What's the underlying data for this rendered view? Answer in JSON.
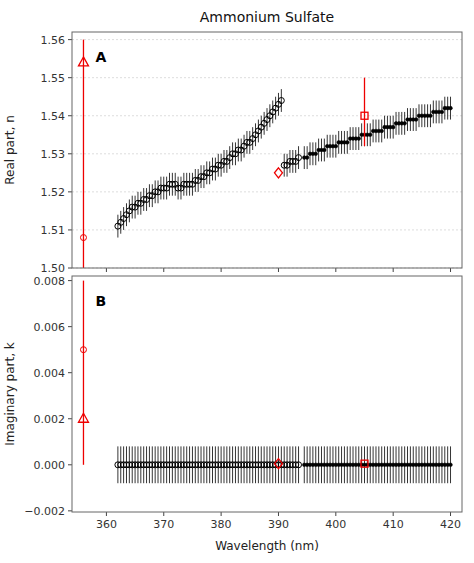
{
  "chart_data": [
    {
      "type": "scatter",
      "title": "Ammonium Sulfate",
      "ylabel": "Real part, n",
      "annotations": [
        "A"
      ],
      "xlim": [
        354,
        422
      ],
      "xticks": [
        360,
        370,
        380,
        390,
        400,
        410,
        420
      ],
      "ylim": [
        1.5,
        1.562
      ],
      "yticks": [
        {
          "value": 1.5,
          "label": "1.50"
        },
        {
          "value": 1.51,
          "label": "1.51"
        },
        {
          "value": 1.52,
          "label": "1.52"
        },
        {
          "value": 1.53,
          "label": "1.53"
        },
        {
          "value": 1.54,
          "label": "1.54"
        },
        {
          "value": 1.55,
          "label": "1.55"
        },
        {
          "value": 1.56,
          "label": "1.56"
        }
      ],
      "grid": "y",
      "tick_labels": "y",
      "series": [
        {
          "marker": "open-circle",
          "color": "#000000",
          "error": 0.003,
          "x": [
            362,
            362.5,
            363,
            363.5,
            364,
            364.5,
            365,
            365.5,
            366,
            366.5,
            367,
            367.5,
            368,
            368.5,
            369,
            369.5,
            370,
            370.5,
            371,
            371.5,
            372,
            372.5,
            373,
            373.5,
            374,
            374.5,
            375,
            375.5,
            376,
            376.5,
            377,
            377.5,
            378,
            378.5,
            379,
            379.5,
            380,
            380.5,
            381,
            381.5,
            382,
            382.5,
            383,
            383.5,
            384,
            384.5,
            385,
            385.5,
            386,
            386.5,
            387,
            387.5,
            388,
            388.5,
            389,
            389.5,
            390,
            390.5,
            391,
            391.5,
            392,
            392.5,
            393,
            393.5
          ],
          "values": [
            1.511,
            1.512,
            1.513,
            1.514,
            1.515,
            1.516,
            1.516,
            1.517,
            1.517,
            1.518,
            1.518,
            1.519,
            1.519,
            1.52,
            1.52,
            1.521,
            1.521,
            1.521,
            1.522,
            1.522,
            1.522,
            1.521,
            1.521,
            1.522,
            1.522,
            1.522,
            1.522,
            1.523,
            1.523,
            1.524,
            1.524,
            1.525,
            1.525,
            1.526,
            1.526,
            1.527,
            1.527,
            1.528,
            1.528,
            1.529,
            1.53,
            1.53,
            1.531,
            1.531,
            1.532,
            1.533,
            1.533,
            1.534,
            1.535,
            1.536,
            1.537,
            1.538,
            1.539,
            1.54,
            1.541,
            1.542,
            1.543,
            1.544,
            1.527,
            1.527,
            1.528,
            1.528,
            1.528,
            1.529
          ]
        },
        {
          "marker": "dot",
          "color": "#000000",
          "error": 0.003,
          "x": [
            394.5,
            395,
            395.5,
            396,
            396.5,
            397,
            397.5,
            398,
            398.5,
            399,
            399.5,
            400,
            400.5,
            401,
            401.5,
            402,
            402.5,
            403,
            403.5,
            404,
            404.5,
            405,
            405.5,
            406,
            406.5,
            407,
            407.5,
            408,
            408.5,
            409,
            409.5,
            410,
            410.5,
            411,
            411.5,
            412,
            412.5,
            413,
            413.5,
            414,
            414.5,
            415,
            415.5,
            416,
            416.5,
            417,
            417.5,
            418,
            418.5,
            419,
            419.5,
            420
          ],
          "values": [
            1.529,
            1.529,
            1.53,
            1.53,
            1.53,
            1.531,
            1.531,
            1.531,
            1.532,
            1.532,
            1.532,
            1.532,
            1.533,
            1.533,
            1.533,
            1.533,
            1.534,
            1.534,
            1.534,
            1.534,
            1.535,
            1.535,
            1.535,
            1.535,
            1.536,
            1.536,
            1.536,
            1.536,
            1.537,
            1.537,
            1.537,
            1.537,
            1.538,
            1.538,
            1.538,
            1.538,
            1.539,
            1.539,
            1.539,
            1.539,
            1.54,
            1.54,
            1.54,
            1.54,
            1.54,
            1.541,
            1.541,
            1.541,
            1.541,
            1.542,
            1.542,
            1.542
          ]
        },
        {
          "type": "range",
          "color": "#EE0000",
          "x": [
            356
          ],
          "low": [
            1.5
          ],
          "high": [
            1.56
          ]
        },
        {
          "marker": "open-triangle",
          "color": "#EE0000",
          "x": [
            356
          ],
          "values": [
            1.554
          ]
        },
        {
          "marker": "open-circle",
          "color": "#EE0000",
          "x": [
            356
          ],
          "values": [
            1.508
          ]
        },
        {
          "marker": "open-diamond",
          "color": "#EE0000",
          "x": [
            390
          ],
          "values": [
            1.525
          ]
        },
        {
          "marker": "open-square",
          "color": "#EE0000",
          "x": [
            405
          ],
          "values": [
            1.54
          ],
          "error_low": 0.008,
          "error_high": 0.01
        }
      ]
    },
    {
      "type": "scatter",
      "xlabel": "Wavelength (nm)",
      "ylabel": "Imaginary part, k",
      "annotations": [
        "B"
      ],
      "xlim": [
        354,
        422
      ],
      "xticks": [
        360,
        370,
        380,
        390,
        400,
        410,
        420
      ],
      "ylim": [
        -0.00205,
        0.0082
      ],
      "yticks": [
        {
          "value": -0.002,
          "label": "−0.002"
        },
        {
          "value": 0.0,
          "label": "0.000"
        },
        {
          "value": 0.002,
          "label": "0.002"
        },
        {
          "value": 0.004,
          "label": "0.004"
        },
        {
          "value": 0.006,
          "label": "0.006"
        },
        {
          "value": 0.008,
          "label": "0.008"
        }
      ],
      "grid": false,
      "series": [
        {
          "marker": "open-circle",
          "color": "#000000",
          "error": 0.0008,
          "x": [
            362,
            362.5,
            363,
            363.5,
            364,
            364.5,
            365,
            365.5,
            366,
            366.5,
            367,
            367.5,
            368,
            368.5,
            369,
            369.5,
            370,
            370.5,
            371,
            371.5,
            372,
            372.5,
            373,
            373.5,
            374,
            374.5,
            375,
            375.5,
            376,
            376.5,
            377,
            377.5,
            378,
            378.5,
            379,
            379.5,
            380,
            380.5,
            381,
            381.5,
            382,
            382.5,
            383,
            383.5,
            384,
            384.5,
            385,
            385.5,
            386,
            386.5,
            387,
            387.5,
            388,
            388.5,
            389,
            389.5,
            390,
            390.5,
            391,
            391.5,
            392,
            392.5,
            393,
            393.5
          ],
          "values": [
            0.0,
            0.0,
            0.0,
            0.0,
            0.0,
            0.0,
            0.0,
            0.0,
            0.0,
            0.0,
            0.0,
            0.0,
            0.0,
            0.0,
            0.0,
            0.0,
            0.0,
            0.0,
            0.0,
            0.0,
            0.0,
            0.0,
            0.0,
            0.0,
            0.0,
            0.0,
            0.0,
            0.0,
            0.0,
            0.0,
            0.0,
            0.0,
            0.0,
            0.0,
            0.0,
            0.0,
            0.0,
            0.0,
            0.0,
            0.0,
            0.0,
            0.0,
            0.0,
            0.0,
            0.0,
            0.0,
            0.0,
            0.0,
            0.0,
            0.0,
            0.0,
            0.0,
            0.0,
            0.0,
            0.0,
            0.0,
            0.0,
            0.0,
            0.0,
            0.0,
            0.0,
            0.0,
            0.0,
            0.0
          ]
        },
        {
          "marker": "dot",
          "color": "#000000",
          "error": 0.0008,
          "x": [
            394.5,
            395,
            395.5,
            396,
            396.5,
            397,
            397.5,
            398,
            398.5,
            399,
            399.5,
            400,
            400.5,
            401,
            401.5,
            402,
            402.5,
            403,
            403.5,
            404,
            404.5,
            405,
            405.5,
            406,
            406.5,
            407,
            407.5,
            408,
            408.5,
            409,
            409.5,
            410,
            410.5,
            411,
            411.5,
            412,
            412.5,
            413,
            413.5,
            414,
            414.5,
            415,
            415.5,
            416,
            416.5,
            417,
            417.5,
            418,
            418.5,
            419,
            419.5,
            420
          ],
          "values": [
            0.0,
            0.0,
            0.0,
            0.0,
            0.0,
            0.0,
            0.0,
            0.0,
            0.0,
            0.0,
            0.0,
            0.0,
            0.0,
            0.0,
            0.0,
            0.0,
            0.0,
            0.0,
            0.0,
            0.0,
            0.0,
            0.0,
            0.0,
            0.0,
            0.0,
            0.0,
            0.0,
            0.0,
            0.0,
            0.0,
            0.0,
            0.0,
            0.0,
            0.0,
            0.0,
            0.0,
            0.0,
            0.0,
            0.0,
            0.0,
            0.0,
            0.0,
            0.0,
            0.0,
            0.0,
            0.0,
            0.0,
            0.0,
            0.0,
            0.0,
            0.0,
            0.0
          ]
        },
        {
          "type": "range",
          "color": "#EE0000",
          "x": [
            356
          ],
          "low": [
            0.0
          ],
          "high": [
            0.008
          ]
        },
        {
          "marker": "open-triangle",
          "color": "#EE0000",
          "x": [
            356
          ],
          "values": [
            0.002
          ]
        },
        {
          "marker": "open-circle",
          "color": "#EE0000",
          "x": [
            356
          ],
          "values": [
            0.005
          ]
        },
        {
          "marker": "open-diamond",
          "color": "#EE0000",
          "x": [
            390
          ],
          "values": [
            5e-05
          ]
        },
        {
          "marker": "open-square",
          "color": "#EE0000",
          "x": [
            405
          ],
          "values": [
            5e-05
          ]
        }
      ]
    }
  ]
}
